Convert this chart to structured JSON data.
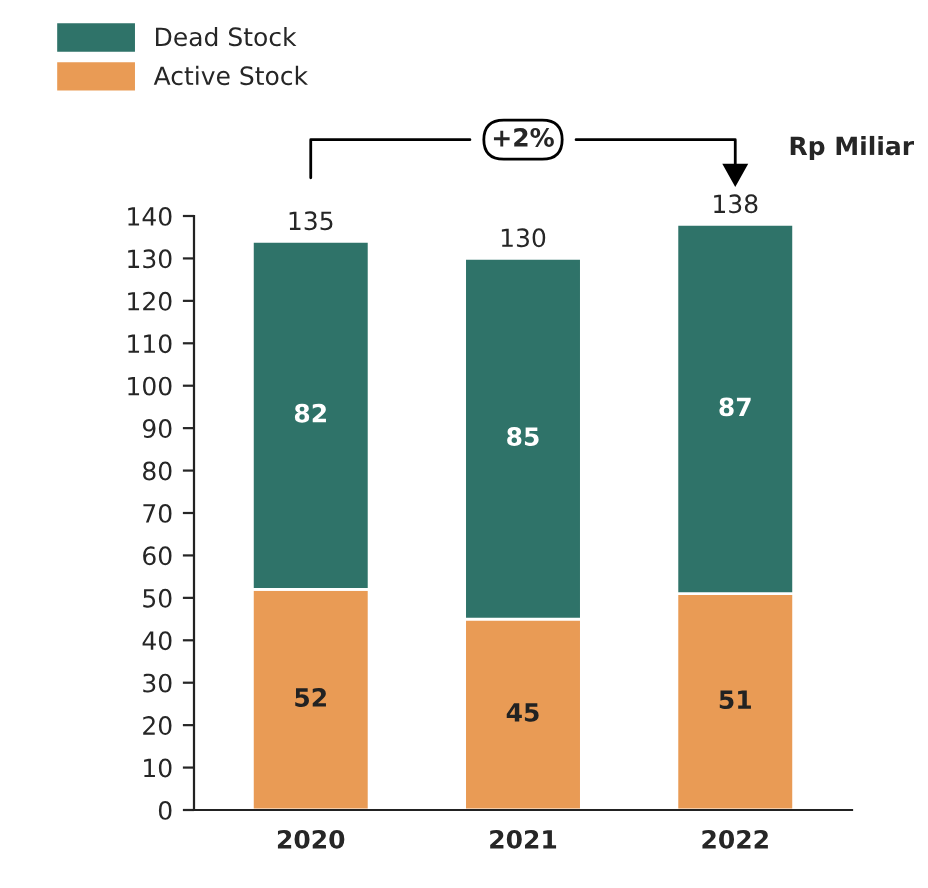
{
  "chart_data": {
    "type": "bar",
    "stacked": true,
    "categories": [
      "2020",
      "2021",
      "2022"
    ],
    "series": [
      {
        "name": "Active Stock",
        "color": "#e99b55",
        "values": [
          52,
          45,
          51
        ]
      },
      {
        "name": "Dead Stock",
        "color": "#2f7369",
        "values": [
          82,
          85,
          87
        ]
      }
    ],
    "data_labels": true,
    "totals": [
      "135",
      "130",
      "138"
    ],
    "ylim": [
      0,
      140
    ],
    "yticks": [
      0,
      10,
      20,
      30,
      40,
      50,
      60,
      70,
      80,
      90,
      100,
      110,
      120,
      130,
      140
    ],
    "annotations": [
      "+2%",
      "Rp Miliar"
    ],
    "legend": "top left",
    "grid": false
  }
}
